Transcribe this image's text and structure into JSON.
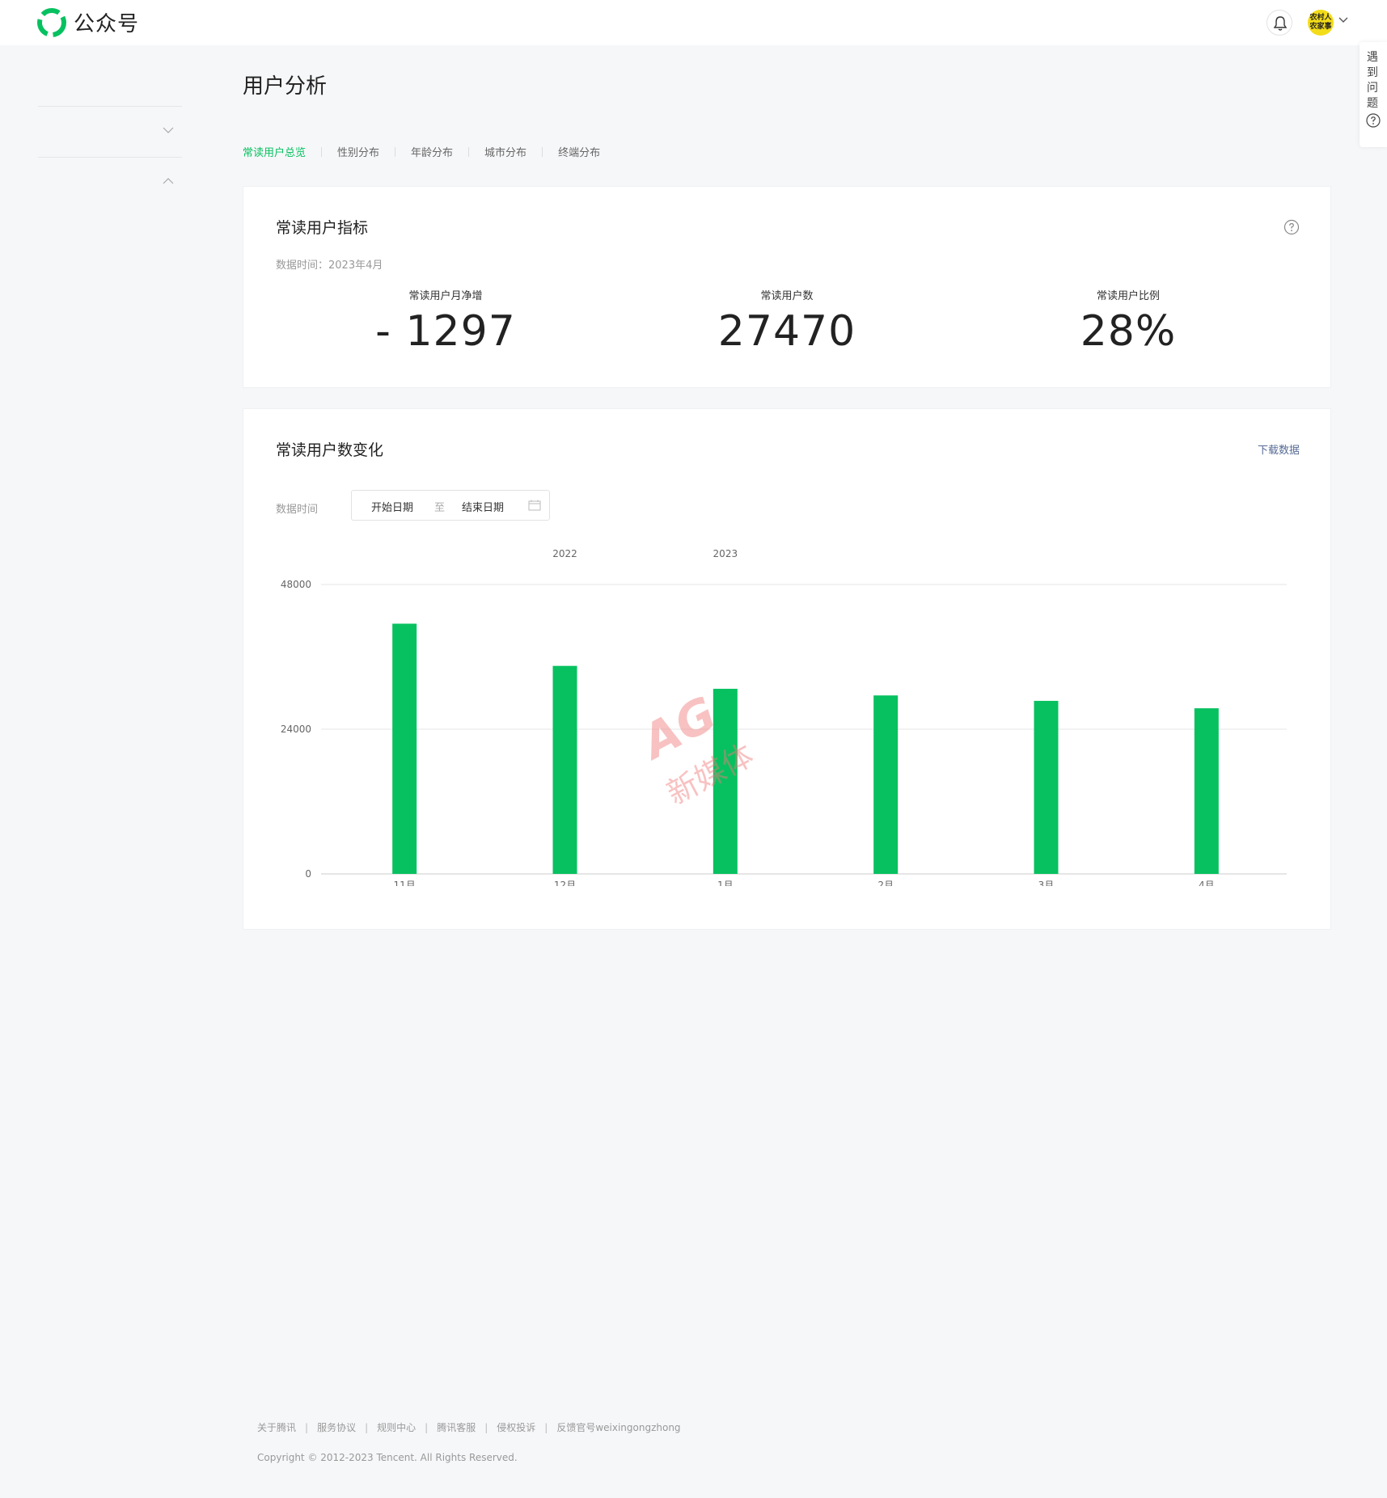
{
  "header": {
    "app_name": "公众号",
    "avatar_text": "农村人\n农家事"
  },
  "help_tab": {
    "label": "遇到问题"
  },
  "page": {
    "title": "用户分析"
  },
  "tabs": [
    {
      "label": "常读用户总览",
      "active": true
    },
    {
      "label": "性别分布",
      "active": false
    },
    {
      "label": "年龄分布",
      "active": false
    },
    {
      "label": "城市分布",
      "active": false
    },
    {
      "label": "终端分布",
      "active": false
    }
  ],
  "metrics_card": {
    "title": "常读用户指标",
    "data_time": "数据时间：2023年4月",
    "metrics": [
      {
        "label": "常读用户月净增",
        "value": "- 1297"
      },
      {
        "label": "常读用户数",
        "value": "27470"
      },
      {
        "label": "常读用户比例",
        "value": "28%"
      }
    ]
  },
  "trend_card": {
    "title": "常读用户数变化",
    "download_label": "下载数据",
    "data_time_label": "数据时间",
    "start_placeholder": "开始日期",
    "separator": "至",
    "end_placeholder": "结束日期"
  },
  "chart_data": {
    "type": "bar",
    "categories": [
      "11月",
      "12月",
      "1月",
      "2月",
      "3月",
      "4月"
    ],
    "values": [
      41500,
      34500,
      30700,
      29600,
      28700,
      27470
    ],
    "year_labels": [
      {
        "text": "2022",
        "category_index": 1
      },
      {
        "text": "2023",
        "category_index": 2
      }
    ],
    "yticks": [
      0,
      24000,
      48000
    ],
    "ylim": [
      0,
      48000
    ],
    "grid": true,
    "bar_color": "#07c160"
  },
  "watermark": {
    "logo": "AG",
    "text": "新媒体"
  },
  "footer": {
    "links": [
      "关于腾讯",
      "服务协议",
      "规则中心",
      "腾讯客服",
      "侵权投诉",
      "反馈官号weixingongzhong"
    ],
    "copyright": "Copyright © 2012-2023 Tencent. All Rights Reserved."
  }
}
